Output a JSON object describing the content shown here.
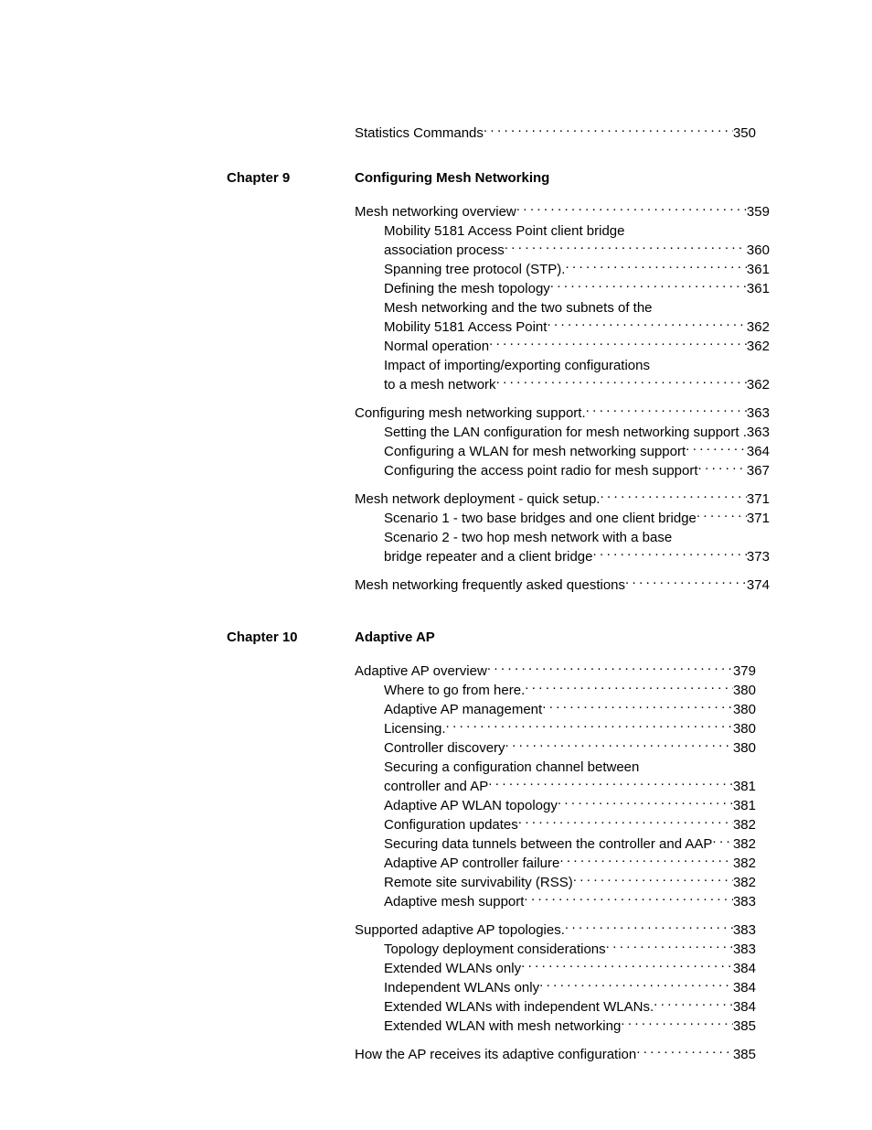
{
  "preEntries": [
    {
      "label": "Statistics Commands",
      "page": "350",
      "sub": false
    }
  ],
  "chapters": [
    {
      "chapterLabel": "Chapter 9",
      "chapterTitle": "Configuring Mesh Networking",
      "sections": [
        {
          "entries": [
            {
              "label": "Mesh networking overview",
              "page": "359",
              "sub": false
            },
            {
              "prefix": "Mobility 5181 Access Point client bridge",
              "label": "association process",
              "page": "360",
              "sub": true
            },
            {
              "label": "Spanning tree protocol (STP).",
              "page": "361",
              "sub": true
            },
            {
              "label": "Defining the mesh topology",
              "page": "361",
              "sub": true
            },
            {
              "prefix": "Mesh networking and the two subnets of the",
              "label": "Mobility 5181 Access Point",
              "page": "362",
              "sub": true
            },
            {
              "label": "Normal operation",
              "page": "362",
              "sub": true
            },
            {
              "prefix": "Impact of importing/exporting configurations",
              "label": "to a mesh network",
              "page": "362",
              "sub": true
            }
          ]
        },
        {
          "entries": [
            {
              "label": "Configuring mesh networking support.",
              "page": "363",
              "sub": false
            },
            {
              "label": "Setting the LAN configuration for mesh networking support .",
              "page": "363",
              "sub": true,
              "noLeader": true
            },
            {
              "label": "Configuring a WLAN for mesh networking support",
              "page": "364",
              "sub": true
            },
            {
              "label": "Configuring the access point radio for mesh support",
              "page": "367",
              "sub": true
            }
          ]
        },
        {
          "entries": [
            {
              "label": "Mesh network deployment - quick setup.",
              "page": "371",
              "sub": false
            },
            {
              "label": "Scenario 1 - two base bridges and one client bridge",
              "page": "371",
              "sub": true
            },
            {
              "prefix": "Scenario 2 - two hop mesh network with a base",
              "label": "bridge repeater and a client bridge",
              "page": "373",
              "sub": true
            }
          ]
        },
        {
          "entries": [
            {
              "label": "Mesh networking frequently asked questions",
              "page": "374",
              "sub": false
            }
          ]
        }
      ]
    },
    {
      "chapterLabel": "Chapter 10",
      "chapterTitle": "Adaptive AP",
      "sections": [
        {
          "entries": [
            {
              "label": "Adaptive AP overview",
              "page": "379",
              "sub": false
            },
            {
              "label": "Where to go from here.",
              "page": "380",
              "sub": true
            },
            {
              "label": "Adaptive AP management",
              "page": "380",
              "sub": true
            },
            {
              "label": "Licensing.",
              "page": "380",
              "sub": true
            },
            {
              "label": "Controller discovery",
              "page": "380",
              "sub": true
            },
            {
              "prefix": "Securing a configuration channel between",
              "label": "controller and AP",
              "page": "381",
              "sub": true
            },
            {
              "label": "Adaptive AP WLAN topology",
              "page": "381",
              "sub": true
            },
            {
              "label": "Configuration updates",
              "page": "382",
              "sub": true
            },
            {
              "label": "Securing data tunnels between the controller and AAP",
              "page": "382",
              "sub": true
            },
            {
              "label": "Adaptive AP controller failure",
              "page": "382",
              "sub": true
            },
            {
              "label": "Remote site survivability (RSS)",
              "page": "382",
              "sub": true
            },
            {
              "label": "Adaptive mesh support",
              "page": "383",
              "sub": true
            }
          ]
        },
        {
          "entries": [
            {
              "label": "Supported adaptive AP topologies.",
              "page": "383",
              "sub": false
            },
            {
              "label": "Topology deployment considerations",
              "page": "383",
              "sub": true
            },
            {
              "label": "Extended WLANs only",
              "page": "384",
              "sub": true
            },
            {
              "label": "Independent WLANs only",
              "page": "384",
              "sub": true
            },
            {
              "label": "Extended WLANs with independent WLANs.",
              "page": "384",
              "sub": true
            },
            {
              "label": "Extended WLAN with mesh networking",
              "page": "385",
              "sub": true
            }
          ]
        },
        {
          "entries": [
            {
              "label": "How the AP receives its adaptive configuration",
              "page": "385",
              "sub": false
            }
          ]
        }
      ]
    }
  ]
}
